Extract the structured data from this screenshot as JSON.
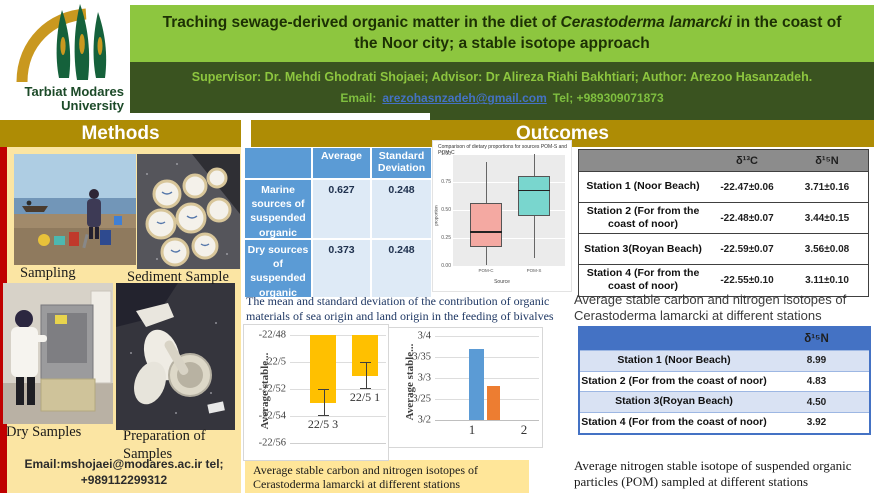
{
  "header": {
    "university_line1": "Tarbiat Modares",
    "university_line2": "University",
    "title_pre": "Traching sewage-derived organic matter in the diet of ",
    "title_species": "Cerastoderma lamarcki",
    "title_post": " in the coast of the Noor city; a stable isotope approach",
    "authors_line": "Supervisor: Dr. Mehdi Ghodrati Shojaei; Advisor: Dr Alireza Riahi Bakhtiari; Author: Arezoo Hasanzadeh.",
    "email_label": "Email:",
    "email_link": "arezohasnzadeh@gmail.com",
    "tel_text": "Tel; +989309071873"
  },
  "section_methods": "Methods",
  "section_outcomes": "Outcomes",
  "methods": {
    "photo_labels": [
      "Sampling",
      "Sediment Sample",
      "Dry  Samples",
      "Preparation of Samples"
    ],
    "contact_line1": "Email:mshojaei@modares.ac.ir tel;",
    "contact_line2": "+989112299312"
  },
  "avg_table": {
    "col_average": "Average",
    "col_sd": "Standard Deviation",
    "rows": [
      {
        "label": "Marine sources of suspended organic particles",
        "average": "0.627",
        "sd": "0.248"
      },
      {
        "label": "Dry sources of suspended organic particles",
        "average": "0.373",
        "sd": "0.248"
      }
    ]
  },
  "mid_caption": "The mean and standard deviation of the contribution of organic materials of sea origin and land origin in the feeding of bivalves",
  "mid_bottom_caption": "Average stable carbon and nitrogen isotopes of Cerastoderma lamarcki at different stations",
  "right_top_caption": "Average stable carbon and nitrogen isotopes of Cerastoderma lamarcki at different stations",
  "right_bottom_caption": "Average nitrogen stable isotope of suspended organic particles (POM) sampled at different stations",
  "isotope_table": {
    "col1": "δ¹³C",
    "col2": "δ¹⁵N",
    "rows": [
      {
        "station": "Station 1 (Noor Beach)",
        "c13": "-22.47±0.06",
        "n15": "3.71±0.16"
      },
      {
        "station": "Station 2 (For from the coast of noor)",
        "c13": "-22.48±0.07",
        "n15": "3.44±0.15"
      },
      {
        "station": "Station 3(Royan Beach)",
        "c13": "-22.59±0.07",
        "n15": "3.56±0.08"
      },
      {
        "station": "Station 4 (For from the coast of noor)",
        "c13": "-22.55±0.10",
        "n15": "3.11±0.10"
      }
    ]
  },
  "pom_table": {
    "col1": "δ¹⁵N",
    "rows": [
      {
        "station": "Station 1 (Noor Beach)",
        "n15": "8.99"
      },
      {
        "station": "Station 2 (For from the coast of noor)",
        "n15": "4.83"
      },
      {
        "station": "Station 3(Royan Beach)",
        "n15": "4.50"
      },
      {
        "station": "Station 4 (For from the coast of noor)",
        "n15": "3.92"
      }
    ]
  },
  "chart_data": [
    {
      "type": "boxplot",
      "title": "Comparison of dietary proportions for sources POM-S and POM-C",
      "xlabel": "Source",
      "ylabel": "proportion",
      "ylim": [
        0,
        1
      ],
      "yticks": [
        "1.00",
        "0.75",
        "0.50",
        "0.25",
        "0.00"
      ],
      "categories": [
        "POM-C",
        "POM-S"
      ],
      "boxes": [
        {
          "label": "POM-C",
          "whisker_low": 0.01,
          "q1": 0.17,
          "median": 0.31,
          "q3": 0.56,
          "whisker_high": 0.93,
          "fill": "#F4A9A2"
        },
        {
          "label": "POM-S",
          "whisker_low": 0.07,
          "q1": 0.45,
          "median": 0.68,
          "q3": 0.8,
          "whisker_high": 1.0,
          "fill": "#79D6CE"
        }
      ]
    },
    {
      "type": "bar",
      "ylabel": "Average stable...",
      "ylim": [
        -22.56,
        -22.48
      ],
      "yticks": [
        "-22/48",
        "-22/5",
        "-22/52",
        "-22/54",
        "-22/56"
      ],
      "categories": [
        "22/5 3",
        "22/5 1"
      ],
      "values": [
        -22.53,
        -22.51
      ],
      "errors": [
        0.01,
        0.01
      ],
      "bar_color": "#FFC000"
    },
    {
      "type": "bar",
      "ylabel": "Average stable...",
      "ylim": [
        3.2,
        3.4
      ],
      "yticks": [
        "3/4",
        "3/35",
        "3/3",
        "3/25",
        "3/2"
      ],
      "categories": [
        "1",
        "2"
      ],
      "values": [
        3.37,
        3.28
      ],
      "bar_colors": [
        "#5B9BD5",
        "#ED7D31"
      ]
    }
  ]
}
